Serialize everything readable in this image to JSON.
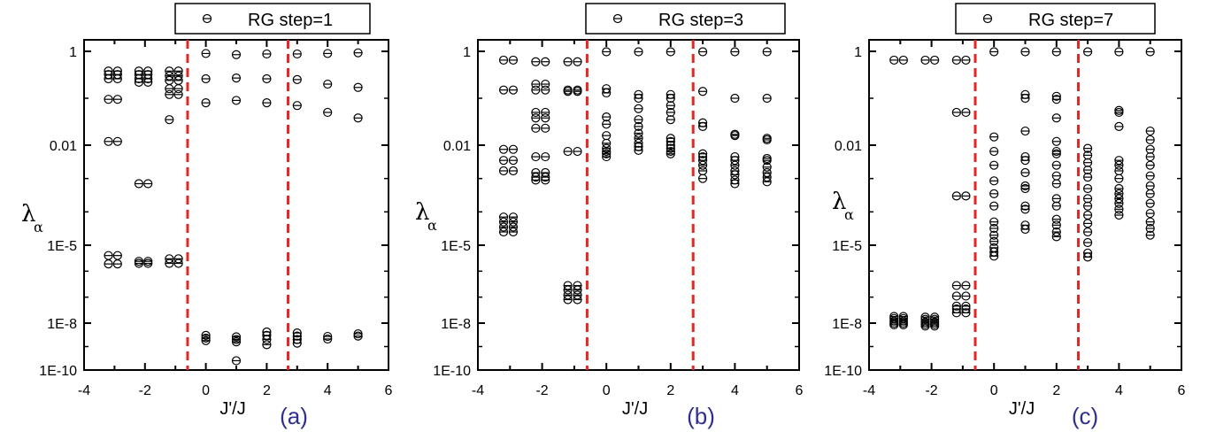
{
  "colors": {
    "marker": "#000000",
    "dashed_line": "#e32626",
    "panel_label": "#2f2f8f"
  },
  "chart_data": [
    {
      "type": "scatter",
      "panel_label": "(a)",
      "legend": "RG step=1",
      "xlabel": "J'/J",
      "ylabel": "λ",
      "ylabel_sub": "α",
      "xlim": [
        -4,
        6
      ],
      "ylim": [
        1e-10,
        1
      ],
      "y_scale": "log",
      "xticks": [
        "-4",
        "-2",
        "0",
        "2",
        "4",
        "6"
      ],
      "yticks": [
        "1",
        "0.01",
        "1E-5",
        "1E-8",
        "1E-10"
      ],
      "vlines": [
        -0.6,
        2.7
      ],
      "points": [
        [
          -3.2,
          0.38
        ],
        [
          -2.9,
          0.38
        ],
        [
          -3.2,
          0.32
        ],
        [
          -2.9,
          0.32
        ],
        [
          -3.2,
          0.26
        ],
        [
          -2.9,
          0.26
        ],
        [
          -3.2,
          0.095
        ],
        [
          -2.9,
          0.095
        ],
        [
          -3.2,
          0.012
        ],
        [
          -2.9,
          0.012
        ],
        [
          -3.2,
          4e-06
        ],
        [
          -2.9,
          4e-06
        ],
        [
          -3.2,
          1.9e-06
        ],
        [
          -2.9,
          1.9e-06
        ],
        [
          -2.2,
          0.38
        ],
        [
          -1.9,
          0.38
        ],
        [
          -2.2,
          0.32
        ],
        [
          -1.9,
          0.32
        ],
        [
          -2.2,
          0.26
        ],
        [
          -1.9,
          0.26
        ],
        [
          -2.2,
          0.22
        ],
        [
          -1.9,
          0.22
        ],
        [
          -2.2,
          0.0007
        ],
        [
          -1.9,
          0.0007
        ],
        [
          -2.2,
          2.4e-06
        ],
        [
          -1.9,
          2.4e-06
        ],
        [
          -2.2,
          2e-06
        ],
        [
          -1.9,
          2e-06
        ],
        [
          -1.2,
          0.38
        ],
        [
          -0.9,
          0.38
        ],
        [
          -1.2,
          0.3
        ],
        [
          -0.9,
          0.3
        ],
        [
          -1.2,
          0.24
        ],
        [
          -0.9,
          0.24
        ],
        [
          -1.2,
          0.16
        ],
        [
          -0.9,
          0.16
        ],
        [
          -1.2,
          0.12
        ],
        [
          -0.9,
          0.12
        ],
        [
          -1.2,
          0.035
        ],
        [
          -1.2,
          3e-06
        ],
        [
          -0.9,
          3e-06
        ],
        [
          -1.2,
          2e-06
        ],
        [
          -0.9,
          2e-06
        ],
        [
          0,
          0.9
        ],
        [
          0,
          0.26
        ],
        [
          0,
          0.08
        ],
        [
          0,
          3e-09
        ],
        [
          0,
          2.3e-09
        ],
        [
          0,
          1.8e-09
        ],
        [
          1,
          0.85
        ],
        [
          1,
          0.27
        ],
        [
          1,
          0.09
        ],
        [
          1,
          2.6e-09
        ],
        [
          1,
          2e-09
        ],
        [
          1,
          1.6e-09
        ],
        [
          1,
          2.5e-10
        ],
        [
          2,
          0.88
        ],
        [
          2,
          0.26
        ],
        [
          2,
          0.08
        ],
        [
          2,
          4.2e-09
        ],
        [
          2,
          3e-09
        ],
        [
          2,
          2e-09
        ],
        [
          2,
          1.2e-09
        ],
        [
          3,
          0.88
        ],
        [
          3,
          0.25
        ],
        [
          3,
          0.07
        ],
        [
          3,
          3.8e-09
        ],
        [
          3,
          2.8e-09
        ],
        [
          3,
          2e-09
        ],
        [
          3,
          1.4e-09
        ],
        [
          4,
          0.9
        ],
        [
          4,
          0.2
        ],
        [
          4,
          0.05
        ],
        [
          4,
          2.7e-09
        ],
        [
          4,
          2.1e-09
        ],
        [
          5,
          0.93
        ],
        [
          5,
          0.17
        ],
        [
          5,
          0.038
        ],
        [
          5,
          3.5e-09
        ],
        [
          5,
          2.8e-09
        ]
      ]
    },
    {
      "type": "scatter",
      "panel_label": "(b)",
      "legend": "RG step=3",
      "xlabel": "J'/J",
      "ylabel": "λ",
      "ylabel_sub": "α",
      "xlim": [
        -4,
        6
      ],
      "ylim": [
        1e-10,
        1
      ],
      "y_scale": "log",
      "xticks": [
        "-4",
        "-2",
        "0",
        "2",
        "4",
        "6"
      ],
      "yticks": [
        "1",
        "0.01",
        "1E-5",
        "1E-8",
        "1E-10"
      ],
      "vlines": [
        -0.6,
        2.7
      ],
      "points": [
        [
          -3.2,
          0.65
        ],
        [
          -2.9,
          0.65
        ],
        [
          -3.2,
          0.15
        ],
        [
          -2.9,
          0.15
        ],
        [
          -3.2,
          0.0075
        ],
        [
          -2.9,
          0.0075
        ],
        [
          -3.2,
          0.0035
        ],
        [
          -2.9,
          0.0035
        ],
        [
          -3.2,
          0.0017
        ],
        [
          -2.9,
          0.0017
        ],
        [
          -3.2,
          7e-05
        ],
        [
          -2.9,
          7e-05
        ],
        [
          -3.2,
          5e-05
        ],
        [
          -2.9,
          5e-05
        ],
        [
          -3.2,
          3.5e-05
        ],
        [
          -2.9,
          3.5e-05
        ],
        [
          -3.2,
          2.5e-05
        ],
        [
          -2.9,
          2.5e-05
        ],
        [
          -2.2,
          0.6
        ],
        [
          -1.9,
          0.6
        ],
        [
          -2.2,
          0.2
        ],
        [
          -1.9,
          0.2
        ],
        [
          -2.2,
          0.15
        ],
        [
          -1.9,
          0.15
        ],
        [
          -2.2,
          0.05
        ],
        [
          -1.9,
          0.05
        ],
        [
          -2.2,
          0.038
        ],
        [
          -1.9,
          0.038
        ],
        [
          -2.2,
          0.023
        ],
        [
          -1.9,
          0.023
        ],
        [
          -2.2,
          0.0045
        ],
        [
          -1.9,
          0.0045
        ],
        [
          -2.2,
          0.0015
        ],
        [
          -1.9,
          0.0015
        ],
        [
          -2.2,
          0.0011
        ],
        [
          -1.9,
          0.0011
        ],
        [
          -2.2,
          0.0009
        ],
        [
          -1.9,
          0.0009
        ],
        [
          -1.2,
          0.6
        ],
        [
          -0.9,
          0.6
        ],
        [
          -1.2,
          0.15
        ],
        [
          -0.9,
          0.15
        ],
        [
          -1.2,
          0.14
        ],
        [
          -0.9,
          0.14
        ],
        [
          -1.2,
          0.0065
        ],
        [
          -0.9,
          0.0065
        ],
        [
          -1.2,
          2.8e-07
        ],
        [
          -0.9,
          2.8e-07
        ],
        [
          -1.2,
          1.9e-07
        ],
        [
          -0.9,
          1.9e-07
        ],
        [
          -1.2,
          1.2e-07
        ],
        [
          -0.9,
          1.2e-07
        ],
        [
          -1.2,
          8e-08
        ],
        [
          -0.9,
          8e-08
        ],
        [
          0,
          0.98
        ],
        [
          0,
          0.16
        ],
        [
          0,
          0.13
        ],
        [
          0,
          0.04
        ],
        [
          0,
          0.028
        ],
        [
          0,
          0.016
        ],
        [
          0,
          0.011
        ],
        [
          0,
          0.008
        ],
        [
          0,
          0.0065
        ],
        [
          0,
          0.0055
        ],
        [
          0,
          0.0045
        ],
        [
          1,
          0.98
        ],
        [
          1,
          0.12
        ],
        [
          1,
          0.1
        ],
        [
          1,
          0.06
        ],
        [
          1,
          0.035
        ],
        [
          1,
          0.025
        ],
        [
          1,
          0.018
        ],
        [
          1,
          0.014
        ],
        [
          1,
          0.011
        ],
        [
          1,
          0.009
        ],
        [
          1,
          0.007
        ],
        [
          2,
          0.98
        ],
        [
          2,
          0.12
        ],
        [
          2,
          0.1
        ],
        [
          2,
          0.07
        ],
        [
          2,
          0.05
        ],
        [
          2,
          0.035
        ],
        [
          2,
          0.014
        ],
        [
          2,
          0.012
        ],
        [
          2,
          0.01
        ],
        [
          2,
          0.008
        ],
        [
          2,
          0.0065
        ],
        [
          2,
          0.0055
        ],
        [
          3,
          0.98
        ],
        [
          3,
          0.14
        ],
        [
          3,
          0.03
        ],
        [
          3,
          0.025
        ],
        [
          3,
          0.0055
        ],
        [
          3,
          0.0045
        ],
        [
          3,
          0.0035
        ],
        [
          3,
          0.0025
        ],
        [
          3,
          0.0017
        ],
        [
          3,
          0.001
        ],
        [
          4,
          0.98
        ],
        [
          4,
          0.1
        ],
        [
          4,
          0.017
        ],
        [
          4,
          0.016
        ],
        [
          4,
          0.0045
        ],
        [
          4,
          0.0035
        ],
        [
          4,
          0.0025
        ],
        [
          4,
          0.0017
        ],
        [
          4,
          0.0013
        ],
        [
          4,
          0.0009
        ],
        [
          4,
          0.0007
        ],
        [
          5,
          0.98
        ],
        [
          5,
          0.1
        ],
        [
          5,
          0.014
        ],
        [
          5,
          0.013
        ],
        [
          5,
          0.004
        ],
        [
          5,
          0.0035
        ],
        [
          5,
          0.0022
        ],
        [
          5,
          0.0015
        ],
        [
          5,
          0.0011
        ],
        [
          5,
          0.0008
        ]
      ]
    },
    {
      "type": "scatter",
      "panel_label": "(c)",
      "legend": "RG step=7",
      "xlabel": "J'/J",
      "ylabel": "λ",
      "ylabel_sub": "α",
      "xlim": [
        -4,
        6
      ],
      "ylim": [
        1e-10,
        1
      ],
      "y_scale": "log",
      "xticks": [
        "-4",
        "-2",
        "0",
        "2",
        "4",
        "6"
      ],
      "yticks": [
        "1",
        "0.01",
        "1E-5",
        "1E-8",
        "1E-10"
      ],
      "vlines": [
        -0.6,
        2.7
      ],
      "points": [
        [
          -3.2,
          0.65
        ],
        [
          -2.9,
          0.65
        ],
        [
          -3.2,
          1.8e-08
        ],
        [
          -2.9,
          1.8e-08
        ],
        [
          -3.2,
          1.5e-08
        ],
        [
          -2.9,
          1.5e-08
        ],
        [
          -3.2,
          1.2e-08
        ],
        [
          -2.9,
          1.2e-08
        ],
        [
          -3.2,
          1e-08
        ],
        [
          -2.9,
          1e-08
        ],
        [
          -3.2,
          8.5e-09
        ],
        [
          -2.9,
          8.5e-09
        ],
        [
          -2.2,
          0.65
        ],
        [
          -1.9,
          0.65
        ],
        [
          -2.2,
          1.7e-08
        ],
        [
          -1.9,
          1.7e-08
        ],
        [
          -2.2,
          1.4e-08
        ],
        [
          -1.9,
          1.4e-08
        ],
        [
          -2.2,
          1.1e-08
        ],
        [
          -1.9,
          1.1e-08
        ],
        [
          -2.2,
          9e-09
        ],
        [
          -1.9,
          9e-09
        ],
        [
          -2.2,
          7.5e-09
        ],
        [
          -1.9,
          7.5e-09
        ],
        [
          -1.2,
          0.65
        ],
        [
          -0.9,
          0.65
        ],
        [
          -1.2,
          0.05
        ],
        [
          -0.9,
          0.05
        ],
        [
          -1.2,
          0.0003
        ],
        [
          -0.9,
          0.0003
        ],
        [
          -1.2,
          2.8e-07
        ],
        [
          -0.9,
          2.8e-07
        ],
        [
          -1.2,
          1.1e-07
        ],
        [
          -0.9,
          1.1e-07
        ],
        [
          -1.2,
          4.5e-08
        ],
        [
          -0.9,
          4.5e-08
        ],
        [
          -1.2,
          3.5e-08
        ],
        [
          -0.9,
          3.5e-08
        ],
        [
          -1.2,
          2.5e-08
        ],
        [
          -0.9,
          2.5e-08
        ],
        [
          0,
          0.98
        ],
        [
          0,
          0.015
        ],
        [
          0,
          0.0065
        ],
        [
          0,
          0.0025
        ],
        [
          0,
          0.00085
        ],
        [
          0,
          0.00035
        ],
        [
          0,
          0.00015
        ],
        [
          0,
          5e-05
        ],
        [
          0,
          3.2e-05
        ],
        [
          0,
          2e-05
        ],
        [
          0,
          1.3e-05
        ],
        [
          0,
          8e-06
        ],
        [
          0,
          5.5e-06
        ],
        [
          0,
          3.8e-06
        ],
        [
          1,
          0.98
        ],
        [
          1,
          0.12
        ],
        [
          1,
          0.1
        ],
        [
          1,
          0.02
        ],
        [
          1,
          0.0045
        ],
        [
          1,
          0.0035
        ],
        [
          1,
          0.0015
        ],
        [
          1,
          0.0006
        ],
        [
          1,
          0.0005
        ],
        [
          1,
          0.00015
        ],
        [
          1,
          0.00012
        ],
        [
          1,
          4e-05
        ],
        [
          1,
          3e-05
        ],
        [
          2,
          0.98
        ],
        [
          2,
          0.11
        ],
        [
          2,
          0.095
        ],
        [
          2,
          0.038
        ],
        [
          2,
          0.012
        ],
        [
          2,
          0.0065
        ],
        [
          2,
          0.0055
        ],
        [
          2,
          0.0025
        ],
        [
          2,
          0.0012
        ],
        [
          2,
          0.0007
        ],
        [
          2,
          0.00025
        ],
        [
          2,
          0.00015
        ],
        [
          2,
          6e-05
        ],
        [
          2,
          4e-05
        ],
        [
          2,
          2.5e-05
        ],
        [
          2,
          1.8e-05
        ],
        [
          3,
          0.98
        ],
        [
          3,
          0.008
        ],
        [
          3,
          0.005
        ],
        [
          3,
          0.003
        ],
        [
          3,
          0.0018
        ],
        [
          3,
          0.0011
        ],
        [
          3,
          0.0005
        ],
        [
          3,
          0.00025
        ],
        [
          3,
          0.00015
        ],
        [
          3,
          8e-05
        ],
        [
          3,
          4.5e-05
        ],
        [
          3,
          2.5e-05
        ],
        [
          3,
          1.2e-05
        ],
        [
          3,
          5e-06
        ],
        [
          3,
          3.5e-06
        ],
        [
          4,
          0.98
        ],
        [
          4,
          0.055
        ],
        [
          4,
          0.05
        ],
        [
          4,
          0.025
        ],
        [
          4,
          0.0035
        ],
        [
          4,
          0.0025
        ],
        [
          4,
          0.0017
        ],
        [
          4,
          0.001
        ],
        [
          4,
          0.0005
        ],
        [
          4,
          0.00035
        ],
        [
          4,
          0.00025
        ],
        [
          4,
          0.00018
        ],
        [
          4,
          0.00012
        ],
        [
          4,
          8e-05
        ],
        [
          5,
          0.98
        ],
        [
          5,
          0.02
        ],
        [
          5,
          0.013
        ],
        [
          5,
          0.0075
        ],
        [
          5,
          0.0045
        ],
        [
          5,
          0.0025
        ],
        [
          5,
          0.0012
        ],
        [
          5,
          0.0006
        ],
        [
          5,
          0.00035
        ],
        [
          5,
          0.00018
        ],
        [
          5,
          9e-05
        ],
        [
          5,
          5e-05
        ],
        [
          5,
          3.2e-05
        ],
        [
          5,
          2e-05
        ]
      ]
    }
  ]
}
